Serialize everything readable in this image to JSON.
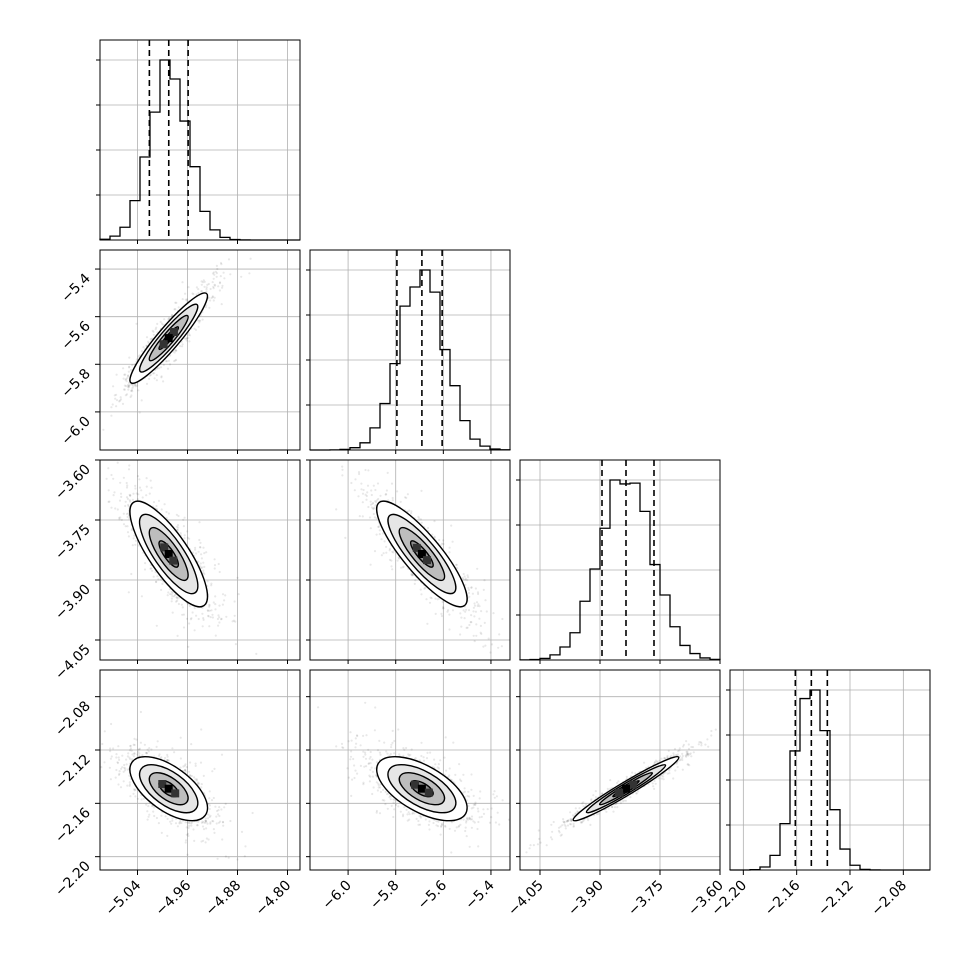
{
  "chart_data": {
    "type": "corner",
    "parameters": [
      {
        "index": 0,
        "range": [
          -5.1,
          -4.78
        ],
        "ticks": [
          -5.04,
          -4.96,
          -4.88,
          -4.8
        ],
        "tick_labels": [
          "−5.04",
          "−4.96",
          "−4.88",
          "−4.80"
        ],
        "quantiles": [
          -5.021,
          -4.99,
          -4.959
        ],
        "mean": -4.99,
        "sigma": 0.031
      },
      {
        "index": 1,
        "range": [
          -6.16,
          -5.32
        ],
        "ticks": [
          -6.0,
          -5.8,
          -5.6,
          -5.4
        ],
        "tick_labels": [
          "−6.0",
          "−5.8",
          "−5.6",
          "−5.4"
        ],
        "quantiles": [
          -5.795,
          -5.69,
          -5.605
        ],
        "mean": -5.69,
        "sigma": 0.095
      },
      {
        "index": 2,
        "range": [
          -4.1,
          -3.6
        ],
        "ticks": [
          -4.05,
          -3.9,
          -3.75,
          -3.6
        ],
        "tick_labels": [
          "−4.05",
          "−3.90",
          "−3.75",
          "−3.60"
        ],
        "quantiles": [
          -3.895,
          -3.835,
          -3.765
        ],
        "mean": -3.835,
        "sigma": 0.066
      },
      {
        "index": 3,
        "range": [
          -2.21,
          -2.06
        ],
        "ticks": [
          -2.2,
          -2.16,
          -2.12,
          -2.08
        ],
        "tick_labels": [
          "−2.20",
          "−2.16",
          "−2.12",
          "−2.08"
        ],
        "quantiles": [
          -2.161,
          -2.149,
          -2.137
        ],
        "mean": -2.149,
        "sigma": 0.012
      }
    ],
    "pair_correlations": {
      "1-0": 0.93,
      "2-0": -0.8,
      "2-1": -0.85,
      "3-0": -0.6,
      "3-1": -0.6,
      "3-2": 0.97
    },
    "histogram_bins": 20,
    "scatter_points_per_panel": 1400,
    "grid": true,
    "colors": {
      "line": "#000000",
      "grid": "#b0b0b0",
      "background": "#ffffff"
    }
  }
}
